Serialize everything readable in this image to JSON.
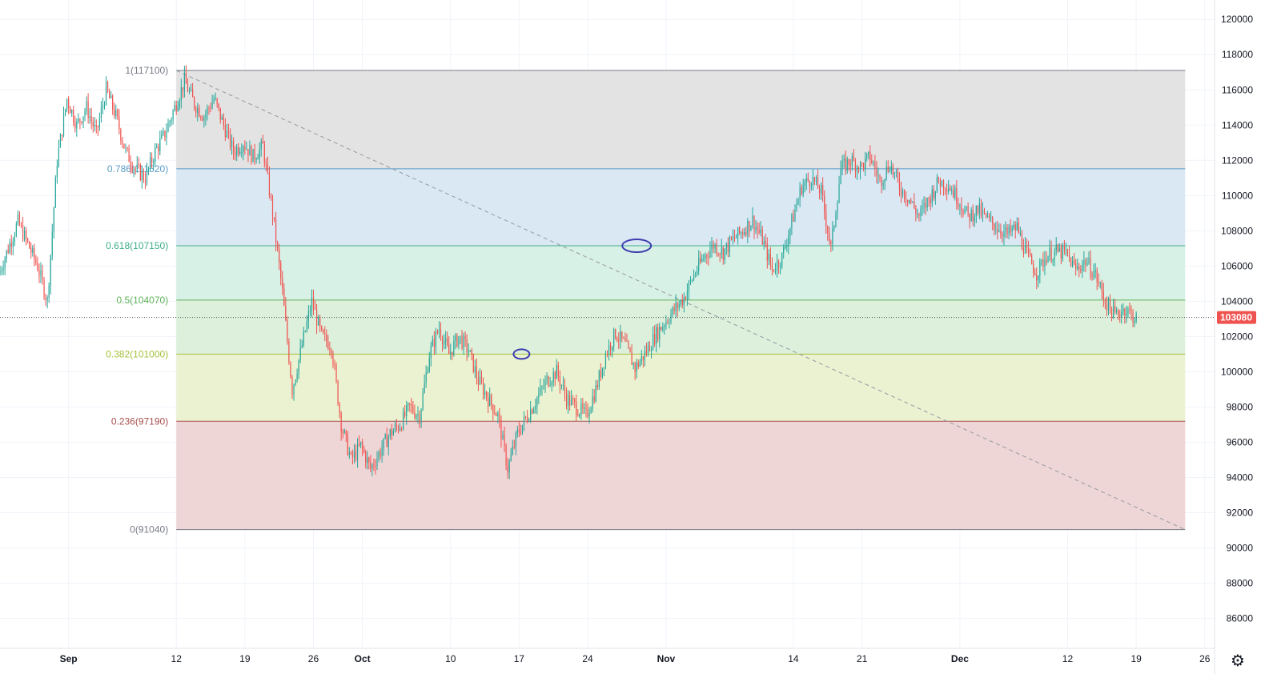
{
  "chart_data": {
    "type": "candlestick",
    "title": "",
    "x_ticks": [
      {
        "label": "Sep",
        "date": "2024-09-01"
      },
      {
        "label": "12",
        "date": "2024-09-12"
      },
      {
        "label": "19",
        "date": "2024-09-19"
      },
      {
        "label": "26",
        "date": "2024-09-26"
      },
      {
        "label": "Oct",
        "date": "2024-10-01"
      },
      {
        "label": "10",
        "date": "2024-10-10"
      },
      {
        "label": "17",
        "date": "2024-10-17"
      },
      {
        "label": "24",
        "date": "2024-10-24"
      },
      {
        "label": "Nov",
        "date": "2024-11-01"
      },
      {
        "label": "14",
        "date": "2024-11-14"
      },
      {
        "label": "21",
        "date": "2024-11-21"
      },
      {
        "label": "Dec",
        "date": "2024-12-01"
      },
      {
        "label": "12",
        "date": "2024-12-12"
      },
      {
        "label": "19",
        "date": "2024-12-19"
      },
      {
        "label": "26",
        "date": "2024-12-26"
      }
    ],
    "y_ticks": [
      86000,
      88000,
      90000,
      92000,
      94000,
      96000,
      98000,
      100000,
      102000,
      104000,
      106000,
      108000,
      110000,
      112000,
      114000,
      116000,
      118000,
      120000
    ],
    "ylim": [
      84300,
      121100
    ],
    "xlim": [
      "2024-08-25",
      "2024-12-27"
    ],
    "grid": true,
    "current_price": {
      "label": "103080",
      "value": 103080,
      "color": "#ef5350"
    },
    "fibonacci": {
      "start": {
        "date": "2024-09-12",
        "price": 117100
      },
      "end": {
        "date": "2024-12-24",
        "price": 91040
      },
      "levels": [
        {
          "label": "1(117100)",
          "value": 117100,
          "color": "#787b86",
          "fill": "#e3e3e3"
        },
        {
          "label": "0.786(111520)",
          "value": 111520,
          "color": "#5b9cc7",
          "fill": "#d9e8f3"
        },
        {
          "label": "0.618(107150)",
          "value": 107150,
          "color": "#3fae8a",
          "fill": "#d8f1e6"
        },
        {
          "label": "0.5(104070)",
          "value": 104070,
          "color": "#5fb35a",
          "fill": "#dcf0dc"
        },
        {
          "label": "0.382(101000)",
          "value": 101000,
          "color": "#a3c23b",
          "fill": "#eaf2d2"
        },
        {
          "label": "0.236(97190)",
          "value": 97190,
          "color": "#a85050",
          "fill": "#efd6d6"
        },
        {
          "label": "0(91040)",
          "value": 91040,
          "color": "#787b86",
          "fill": "#efd6d6"
        }
      ]
    },
    "annotations": [
      {
        "type": "ellipse",
        "date": "2024-10-17",
        "price": 101000,
        "color": "#3d3db0"
      },
      {
        "type": "ellipse",
        "date": "2024-10-29",
        "price": 107150,
        "color": "#3d3db0"
      }
    ],
    "price_path": [
      [
        "2024-08-25",
        105500
      ],
      [
        "2024-08-27",
        108500
      ],
      [
        "2024-08-29",
        106000
      ],
      [
        "2024-08-30",
        104000
      ],
      [
        "2024-08-31",
        112000
      ],
      [
        "2024-09-01",
        115500
      ],
      [
        "2024-09-02",
        114000
      ],
      [
        "2024-09-03",
        115000
      ],
      [
        "2024-09-04",
        113500
      ],
      [
        "2024-09-05",
        116000
      ],
      [
        "2024-09-06",
        114500
      ],
      [
        "2024-09-07",
        112500
      ],
      [
        "2024-09-08",
        111500
      ],
      [
        "2024-09-09",
        111000
      ],
      [
        "2024-09-10",
        112500
      ],
      [
        "2024-09-11",
        113500
      ],
      [
        "2024-09-12",
        115000
      ],
      [
        "2024-09-13",
        116500
      ],
      [
        "2024-09-14",
        115200
      ],
      [
        "2024-09-15",
        114500
      ],
      [
        "2024-09-16",
        115500
      ],
      [
        "2024-09-17",
        114000
      ],
      [
        "2024-09-18",
        112500
      ],
      [
        "2024-09-19",
        113000
      ],
      [
        "2024-09-20",
        112200
      ],
      [
        "2024-09-21",
        112800
      ],
      [
        "2024-09-22",
        109000
      ],
      [
        "2024-09-23",
        104500
      ],
      [
        "2024-09-24",
        99000
      ],
      [
        "2024-09-25",
        101500
      ],
      [
        "2024-09-26",
        104000
      ],
      [
        "2024-09-27",
        102000
      ],
      [
        "2024-09-28",
        101500
      ],
      [
        "2024-09-29",
        97000
      ],
      [
        "2024-09-30",
        95000
      ],
      [
        "2024-10-01",
        95800
      ],
      [
        "2024-10-02",
        94500
      ],
      [
        "2024-10-03",
        95500
      ],
      [
        "2024-10-04",
        96500
      ],
      [
        "2024-10-05",
        97000
      ],
      [
        "2024-10-06",
        98000
      ],
      [
        "2024-10-07",
        97500
      ],
      [
        "2024-10-08",
        101000
      ],
      [
        "2024-10-09",
        102500
      ],
      [
        "2024-10-10",
        101000
      ],
      [
        "2024-10-11",
        102000
      ],
      [
        "2024-10-12",
        101200
      ],
      [
        "2024-10-13",
        99500
      ],
      [
        "2024-10-14",
        98500
      ],
      [
        "2024-10-15",
        97500
      ],
      [
        "2024-10-16",
        94500
      ],
      [
        "2024-10-17",
        96500
      ],
      [
        "2024-10-18",
        97500
      ],
      [
        "2024-10-19",
        98500
      ],
      [
        "2024-10-20",
        99500
      ],
      [
        "2024-10-21",
        100000
      ],
      [
        "2024-10-22",
        98500
      ],
      [
        "2024-10-23",
        98000
      ],
      [
        "2024-10-24",
        97500
      ],
      [
        "2024-10-25",
        99000
      ],
      [
        "2024-10-26",
        101000
      ],
      [
        "2024-10-27",
        102200
      ],
      [
        "2024-10-28",
        101500
      ],
      [
        "2024-10-29",
        100200
      ],
      [
        "2024-10-30",
        101000
      ],
      [
        "2024-10-31",
        102000
      ],
      [
        "2024-11-01",
        102800
      ],
      [
        "2024-11-02",
        103500
      ],
      [
        "2024-11-03",
        104200
      ],
      [
        "2024-11-04",
        105500
      ],
      [
        "2024-11-05",
        106500
      ],
      [
        "2024-11-06",
        107200
      ],
      [
        "2024-11-07",
        106800
      ],
      [
        "2024-11-08",
        107500
      ],
      [
        "2024-11-09",
        108000
      ],
      [
        "2024-11-10",
        108600
      ],
      [
        "2024-11-11",
        107500
      ],
      [
        "2024-11-12",
        105800
      ],
      [
        "2024-11-13",
        106500
      ],
      [
        "2024-11-14",
        108500
      ],
      [
        "2024-11-15",
        110500
      ],
      [
        "2024-11-16",
        111000
      ],
      [
        "2024-11-17",
        110200
      ],
      [
        "2024-11-18",
        107000
      ],
      [
        "2024-11-19",
        111500
      ],
      [
        "2024-11-20",
        112000
      ],
      [
        "2024-11-21",
        111600
      ],
      [
        "2024-11-22",
        112200
      ],
      [
        "2024-11-23",
        110800
      ],
      [
        "2024-11-24",
        111800
      ],
      [
        "2024-11-25",
        110500
      ],
      [
        "2024-11-26",
        109800
      ],
      [
        "2024-11-27",
        108800
      ],
      [
        "2024-11-28",
        109800
      ],
      [
        "2024-11-29",
        110800
      ],
      [
        "2024-11-30",
        110600
      ],
      [
        "2024-12-01",
        109800
      ],
      [
        "2024-12-02",
        108800
      ],
      [
        "2024-12-03",
        109200
      ],
      [
        "2024-12-04",
        108600
      ],
      [
        "2024-12-05",
        108200
      ],
      [
        "2024-12-06",
        107800
      ],
      [
        "2024-12-07",
        108200
      ],
      [
        "2024-12-08",
        106600
      ],
      [
        "2024-12-09",
        105600
      ],
      [
        "2024-12-10",
        106600
      ],
      [
        "2024-12-11",
        106800
      ],
      [
        "2024-12-12",
        106700
      ],
      [
        "2024-12-13",
        105800
      ],
      [
        "2024-12-14",
        106300
      ],
      [
        "2024-12-15",
        105500
      ],
      [
        "2024-12-16",
        104000
      ],
      [
        "2024-12-17",
        103200
      ],
      [
        "2024-12-18",
        103600
      ],
      [
        "2024-12-19",
        103080
      ]
    ]
  },
  "icons": {
    "settings": "gear-icon",
    "settings_glyph": "⚙"
  }
}
